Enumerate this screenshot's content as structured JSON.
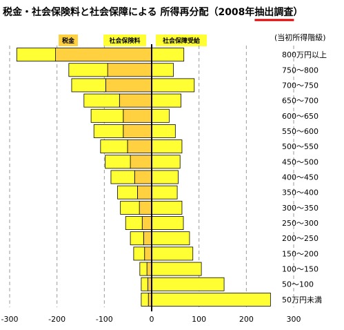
{
  "chart_data": {
    "type": "bar",
    "orientation": "horizontal",
    "stacked": true,
    "title": "税金・社会保険料と社会保障による 所得再分配（2008年",
    "title_emphasis": "抽出調査",
    "title_close": "）",
    "category_header": "(当初所得階級)",
    "categories": [
      "800万円以上",
      "750〜800",
      "700〜750",
      "650〜700",
      "600〜650",
      "550〜600",
      "500〜550",
      "450〜500",
      "400〜450",
      "350〜400",
      "300〜350",
      "250〜300",
      "200〜250",
      "150〜200",
      "100〜150",
      "50〜100",
      "50万円未満"
    ],
    "series": [
      {
        "name": "税金",
        "color": "#FFD040",
        "values": [
          -203,
          -93,
          -97,
          -68,
          -60,
          -60,
          -51,
          -45,
          -36,
          -30,
          -26,
          -20,
          -17,
          -15,
          -10,
          -8,
          -7
        ]
      },
      {
        "name": "社会保険料",
        "color": "#FFFF33",
        "values": [
          -82,
          -82,
          -72,
          -75,
          -68,
          -62,
          -57,
          -53,
          -50,
          -42,
          -40,
          -35,
          -28,
          -23,
          -15,
          -14,
          -15
        ]
      },
      {
        "name": "社会保障受給",
        "color": "#FFFF33",
        "values": [
          68,
          46,
          90,
          62,
          37,
          50,
          64,
          60,
          56,
          54,
          64,
          67,
          80,
          87,
          105,
          153,
          251
        ]
      }
    ],
    "legend_labels": [
      "税金",
      "社会保険料",
      "社会保障受給"
    ],
    "xlim": [
      -300,
      300
    ],
    "xticks": [
      -300,
      -200,
      -100,
      0,
      100,
      200,
      300
    ],
    "grid": "vertical dashed",
    "legend_placement": "top"
  }
}
